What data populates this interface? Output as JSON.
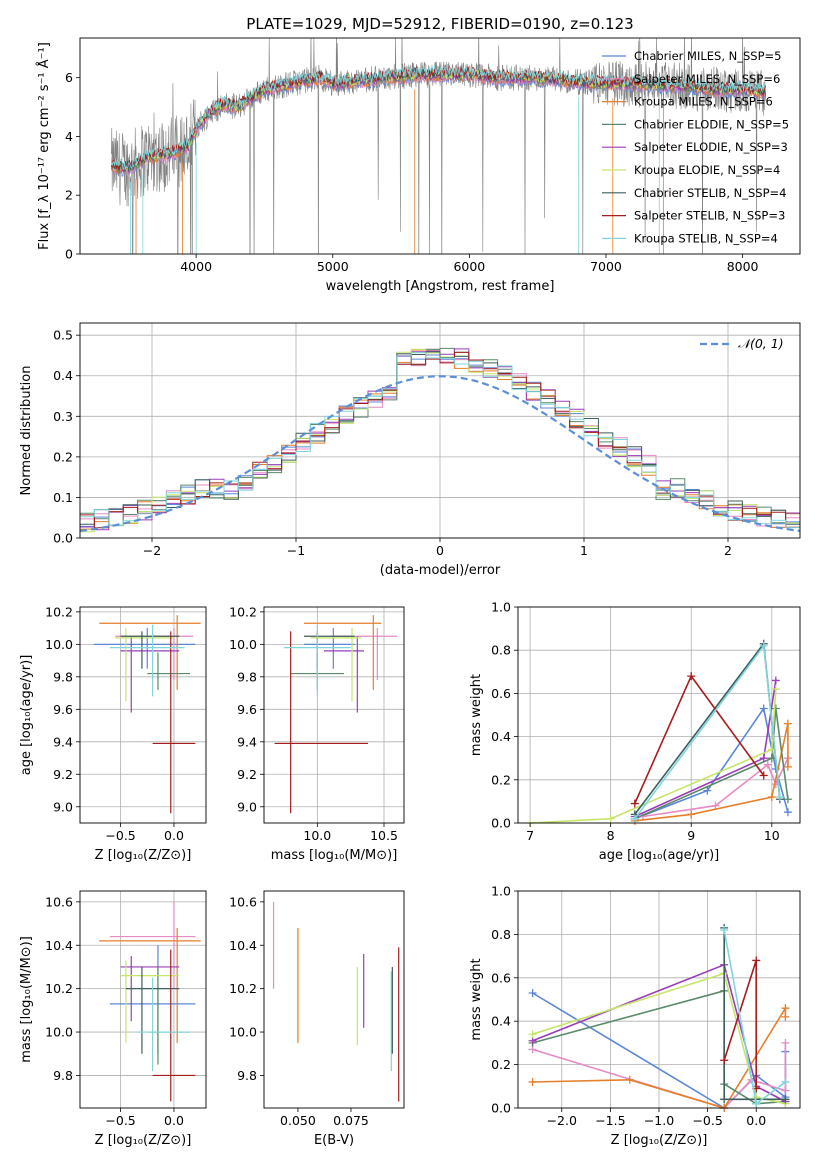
{
  "title": "PLATE=1029, MJD=52912, FIBERID=0190, z=0.123",
  "colors": {
    "chabrier_miles": "#5b86d8",
    "salpeter_miles": "#e78ac3",
    "kroupa_miles": "#e57f2a",
    "chabrier_elodie": "#5a8a6a",
    "salpeter_elodie": "#9b3db8",
    "kroupa_elodie": "#c6e66a",
    "chabrier_stelib": "#3d5f5e",
    "salpeter_stelib": "#a61c1c",
    "kroupa_stelib": "#7fd6dc",
    "data_gray": "#808080",
    "normal_curve": "#5b8fd8"
  },
  "chart_data": [
    {
      "id": "spectrum",
      "type": "line",
      "xlabel": "wavelength [Angstrom, rest frame]",
      "ylabel": "Flux [f_λ 10⁻¹⁷ erg cm⁻² s⁻¹ Å⁻¹]",
      "xlim": [
        3150,
        8420
      ],
      "ylim": [
        0,
        7.35
      ],
      "xticks": [
        4000,
        5000,
        6000,
        7000,
        8000
      ],
      "yticks": [
        0,
        2,
        4,
        6
      ],
      "grid": false,
      "legend": "top-right",
      "continuum": {
        "x": [
          3380,
          3500,
          3650,
          3800,
          3950,
          4000,
          4100,
          4200,
          4300,
          4400,
          4500,
          4700,
          4900,
          5000,
          5200,
          5400,
          5600,
          5800,
          6000,
          6200,
          6400,
          6600,
          6800,
          7000,
          7200,
          7400,
          7600,
          7800,
          8000,
          8170
        ],
        "y": [
          3.0,
          2.9,
          3.3,
          3.4,
          3.7,
          4.3,
          4.8,
          5.1,
          5.0,
          5.3,
          5.6,
          5.8,
          6.0,
          5.8,
          5.9,
          6.0,
          6.1,
          6.1,
          6.1,
          6.0,
          6.0,
          5.95,
          5.85,
          5.8,
          5.8,
          5.75,
          5.7,
          5.6,
          5.6,
          5.5
        ]
      },
      "series": [
        {
          "name": "Chabrier MILES, N_SSP=5",
          "color_key": "chabrier_miles"
        },
        {
          "name": "Salpeter MILES, N_SSP=6",
          "color_key": "salpeter_miles"
        },
        {
          "name": "Kroupa MILES, N_SSP=6",
          "color_key": "kroupa_miles"
        },
        {
          "name": "Chabrier ELODIE, N_SSP=5",
          "color_key": "chabrier_elodie"
        },
        {
          "name": "Salpeter ELODIE, N_SSP=3",
          "color_key": "salpeter_elodie"
        },
        {
          "name": "Kroupa ELODIE, N_SSP=4",
          "color_key": "kroupa_elodie"
        },
        {
          "name": "Chabrier STELIB, N_SSP=4",
          "color_key": "chabrier_stelib"
        },
        {
          "name": "Salpeter STELIB, N_SSP=3",
          "color_key": "salpeter_stelib"
        },
        {
          "name": "Kroupa STELIB, N_SSP=4",
          "color_key": "kroupa_stelib"
        }
      ]
    },
    {
      "id": "residuals",
      "type": "line",
      "xlabel": "(data-model)/error",
      "ylabel": "Normed distribution",
      "xlim": [
        -2.5,
        2.5
      ],
      "ylim": [
        0,
        0.53
      ],
      "xticks": [
        -2,
        -1,
        0,
        1,
        2
      ],
      "yticks": [
        0.0,
        0.1,
        0.2,
        0.3,
        0.4,
        0.5
      ],
      "grid": true,
      "legend": "top-right",
      "legend_label": "𝒩(0, 1)",
      "bin_width": 0.1,
      "bin_start": -2.5,
      "bin_count": 50
    },
    {
      "id": "age_vs_Z",
      "type": "scatter",
      "xlabel": "Z [log₁₀(Z/Z⊙)]",
      "ylabel": "age  [log₁₀(age/yr)]",
      "xlim": [
        -0.88,
        0.3
      ],
      "ylim": [
        8.9,
        10.23
      ],
      "xticks": [
        -0.5,
        0.0
      ],
      "yticks": [
        9.0,
        9.2,
        9.4,
        9.6,
        9.8,
        10.0,
        10.2
      ],
      "grid": true,
      "points": [
        {
          "x": -0.25,
          "y": 10.0,
          "xlo": -0.75,
          "xhi": 0.2,
          "ylo": 9.85,
          "yhi": 10.1,
          "color_key": "chabrier_miles"
        },
        {
          "x": 0.0,
          "y": 10.05,
          "xlo": -0.55,
          "xhi": 0.18,
          "ylo": 9.78,
          "yhi": 10.1,
          "color_key": "salpeter_miles"
        },
        {
          "x": 0.03,
          "y": 10.13,
          "xlo": -0.7,
          "xhi": 0.25,
          "ylo": 9.72,
          "yhi": 10.18,
          "color_key": "kroupa_miles"
        },
        {
          "x": -0.15,
          "y": 9.82,
          "xlo": -0.25,
          "xhi": 0.15,
          "ylo": 9.72,
          "yhi": 9.95,
          "color_key": "chabrier_elodie"
        },
        {
          "x": -0.4,
          "y": 9.96,
          "xlo": -0.5,
          "xhi": 0.05,
          "ylo": 9.58,
          "yhi": 10.05,
          "color_key": "salpeter_elodie"
        },
        {
          "x": -0.45,
          "y": 10.04,
          "xlo": -0.55,
          "xhi": 0.0,
          "ylo": 9.65,
          "yhi": 10.1,
          "color_key": "kroupa_elodie"
        },
        {
          "x": -0.3,
          "y": 10.05,
          "xlo": -0.5,
          "xhi": 0.05,
          "ylo": 9.85,
          "yhi": 10.08,
          "color_key": "chabrier_stelib"
        },
        {
          "x": -0.03,
          "y": 9.39,
          "xlo": -0.2,
          "xhi": 0.2,
          "ylo": 8.96,
          "yhi": 10.08,
          "color_key": "salpeter_stelib"
        },
        {
          "x": -0.2,
          "y": 9.98,
          "xlo": -0.6,
          "xhi": 0.1,
          "ylo": 9.68,
          "yhi": 10.12,
          "color_key": "kroupa_stelib"
        }
      ]
    },
    {
      "id": "age_vs_mass",
      "type": "scatter",
      "xlabel": "mass [log₁₀(M/M⊙)]",
      "ylabel": "",
      "xlim": [
        9.6,
        10.65
      ],
      "ylim": [
        8.9,
        10.23
      ],
      "xticks": [
        10.0,
        10.5
      ],
      "yticks": [
        9.0,
        9.2,
        9.4,
        9.6,
        9.8,
        10.0,
        10.2
      ],
      "grid": true,
      "points": [
        {
          "x": 10.12,
          "y": 10.0,
          "xlo": 9.9,
          "xhi": 10.28,
          "ylo": 9.85,
          "yhi": 10.1,
          "color_key": "chabrier_miles"
        },
        {
          "x": 10.45,
          "y": 10.05,
          "xlo": 10.1,
          "xhi": 10.6,
          "ylo": 9.78,
          "yhi": 10.1,
          "color_key": "salpeter_miles"
        },
        {
          "x": 10.42,
          "y": 10.13,
          "xlo": 9.9,
          "xhi": 10.48,
          "ylo": 9.72,
          "yhi": 10.18,
          "color_key": "kroupa_miles"
        },
        {
          "x": 10.0,
          "y": 9.82,
          "xlo": 9.8,
          "xhi": 10.2,
          "ylo": 9.72,
          "yhi": 9.95,
          "color_key": "chabrier_elodie"
        },
        {
          "x": 10.3,
          "y": 9.96,
          "xlo": 10.05,
          "xhi": 10.35,
          "ylo": 9.58,
          "yhi": 10.05,
          "color_key": "salpeter_elodie"
        },
        {
          "x": 10.26,
          "y": 10.04,
          "xlo": 9.95,
          "xhi": 10.33,
          "ylo": 9.65,
          "yhi": 10.1,
          "color_key": "kroupa_elodie"
        },
        {
          "x": 10.0,
          "y": 10.05,
          "xlo": 9.9,
          "xhi": 10.28,
          "ylo": 9.85,
          "yhi": 10.08,
          "color_key": "chabrier_stelib"
        },
        {
          "x": 9.8,
          "y": 9.39,
          "xlo": 9.68,
          "xhi": 10.38,
          "ylo": 8.96,
          "yhi": 10.08,
          "color_key": "salpeter_stelib"
        },
        {
          "x": 10.0,
          "y": 9.98,
          "xlo": 9.75,
          "xhi": 10.25,
          "ylo": 9.68,
          "yhi": 10.12,
          "color_key": "kroupa_stelib"
        }
      ]
    },
    {
      "id": "weight_vs_age",
      "type": "line",
      "xlabel": "age  [log₁₀(age/yr)]",
      "ylabel": "mass weight",
      "xlim": [
        6.85,
        10.35
      ],
      "ylim": [
        0,
        1.0
      ],
      "xticks": [
        7,
        8,
        9,
        10
      ],
      "yticks": [
        0.0,
        0.2,
        0.4,
        0.6,
        0.8,
        1.0
      ],
      "grid": true,
      "series": [
        {
          "color_key": "chabrier_miles",
          "x": [
            8.3,
            9.2,
            9.9,
            10.05,
            10.2
          ],
          "y": [
            0.02,
            0.15,
            0.53,
            0.25,
            0.05
          ]
        },
        {
          "color_key": "salpeter_miles",
          "x": [
            8.4,
            9.3,
            9.95,
            10.05,
            10.2
          ],
          "y": [
            0.03,
            0.08,
            0.27,
            0.18,
            0.3
          ]
        },
        {
          "color_key": "kroupa_miles",
          "x": [
            8.3,
            9.0,
            10.0,
            10.2,
            10.2
          ],
          "y": [
            0.01,
            0.04,
            0.12,
            0.46,
            0.26
          ]
        },
        {
          "color_key": "chabrier_elodie",
          "x": [
            8.3,
            10.0,
            10.05,
            10.2
          ],
          "y": [
            0.02,
            0.3,
            0.53,
            0.11
          ]
        },
        {
          "color_key": "salpeter_elodie",
          "x": [
            8.3,
            9.9,
            10.05
          ],
          "y": [
            0.03,
            0.3,
            0.66
          ]
        },
        {
          "color_key": "kroupa_elodie",
          "x": [
            7.0,
            8.0,
            10.0,
            10.05
          ],
          "y": [
            0.0,
            0.02,
            0.34,
            0.62
          ]
        },
        {
          "color_key": "chabrier_stelib",
          "x": [
            8.3,
            9.9,
            10.1
          ],
          "y": [
            0.04,
            0.83,
            0.11
          ]
        },
        {
          "color_key": "salpeter_stelib",
          "x": [
            8.3,
            9.0,
            9.9
          ],
          "y": [
            0.09,
            0.68,
            0.22
          ]
        },
        {
          "color_key": "kroupa_stelib",
          "x": [
            8.3,
            9.9,
            10.1
          ],
          "y": [
            0.02,
            0.82,
            0.12
          ]
        }
      ]
    },
    {
      "id": "mass_vs_Z",
      "type": "scatter",
      "xlabel": "Z [log₁₀(Z/Z⊙)]",
      "ylabel": "mass [log₁₀(M/M⊙)]",
      "xlim": [
        -0.88,
        0.3
      ],
      "ylim": [
        9.65,
        10.65
      ],
      "xticks": [
        -0.5,
        0.0
      ],
      "yticks": [
        9.8,
        10.0,
        10.2,
        10.4,
        10.6
      ],
      "grid": true,
      "points": [
        {
          "x": -0.15,
          "y": 10.13,
          "xlo": -0.6,
          "xhi": 0.2,
          "ylo": 9.9,
          "yhi": 10.4,
          "color_key": "chabrier_miles"
        },
        {
          "x": 0.0,
          "y": 10.44,
          "xlo": -0.6,
          "xhi": 0.2,
          "ylo": 10.2,
          "yhi": 10.6,
          "color_key": "salpeter_miles"
        },
        {
          "x": 0.03,
          "y": 10.42,
          "xlo": -0.7,
          "xhi": 0.25,
          "ylo": 9.95,
          "yhi": 10.48,
          "color_key": "kroupa_miles"
        },
        {
          "x": -0.15,
          "y": 10.0,
          "xlo": -0.25,
          "xhi": 0.15,
          "ylo": 9.85,
          "yhi": 10.3,
          "color_key": "chabrier_elodie"
        },
        {
          "x": -0.4,
          "y": 10.3,
          "xlo": -0.5,
          "xhi": 0.05,
          "ylo": 10.05,
          "yhi": 10.35,
          "color_key": "salpeter_elodie"
        },
        {
          "x": -0.45,
          "y": 10.26,
          "xlo": -0.5,
          "xhi": 0.05,
          "ylo": 9.95,
          "yhi": 10.33,
          "color_key": "kroupa_elodie"
        },
        {
          "x": -0.3,
          "y": 10.2,
          "xlo": -0.45,
          "xhi": 0.05,
          "ylo": 9.9,
          "yhi": 10.3,
          "color_key": "chabrier_stelib"
        },
        {
          "x": -0.03,
          "y": 9.8,
          "xlo": -0.2,
          "xhi": 0.2,
          "ylo": 9.68,
          "yhi": 10.38,
          "color_key": "salpeter_stelib"
        },
        {
          "x": -0.2,
          "y": 10.0,
          "xlo": -0.35,
          "xhi": 0.15,
          "ylo": 9.82,
          "yhi": 10.25,
          "color_key": "kroupa_stelib"
        }
      ]
    },
    {
      "id": "mass_vs_ebv",
      "type": "scatter",
      "xlabel": "E(B-V)",
      "ylabel": "",
      "xlim": [
        0.034,
        0.1
      ],
      "ylim": [
        9.65,
        10.65
      ],
      "xticks": [
        0.05,
        0.075
      ],
      "xticklabels": [
        "0.050",
        "0.075"
      ],
      "yticks": [
        9.8,
        10.0,
        10.2,
        10.4,
        10.6
      ],
      "grid": false,
      "points": [
        {
          "x": 0.0385,
          "ylo": 10.2,
          "yhi": 10.6,
          "color_key": "salpeter_miles"
        },
        {
          "x": 0.05,
          "ylo": 9.95,
          "yhi": 10.48,
          "color_key": "kroupa_miles"
        },
        {
          "x": 0.078,
          "ylo": 9.94,
          "yhi": 10.3,
          "color_key": "kroupa_elodie"
        },
        {
          "x": 0.081,
          "ylo": 10.02,
          "yhi": 10.36,
          "color_key": "salpeter_elodie"
        },
        {
          "x": 0.094,
          "ylo": 9.82,
          "yhi": 10.28,
          "color_key": "kroupa_stelib"
        },
        {
          "x": 0.0945,
          "ylo": 9.9,
          "yhi": 10.3,
          "color_key": "chabrier_stelib"
        },
        {
          "x": 0.0975,
          "ylo": 9.68,
          "yhi": 10.39,
          "color_key": "salpeter_stelib"
        }
      ]
    },
    {
      "id": "weight_vs_Z",
      "type": "line",
      "xlabel": "Z [log₁₀(Z/Z⊙)]",
      "ylabel": "mass weight",
      "xlim": [
        -2.45,
        0.45
      ],
      "ylim": [
        0,
        1.0
      ],
      "xticks": [
        -2.0,
        -1.5,
        -1.0,
        -0.5,
        0.0
      ],
      "yticks": [
        0.0,
        0.2,
        0.4,
        0.6,
        0.8,
        1.0
      ],
      "grid": true,
      "series": [
        {
          "color_key": "chabrier_miles",
          "x": [
            -2.3,
            -0.33,
            0.0,
            0.3,
            0.3
          ],
          "y": [
            0.53,
            0.0,
            0.15,
            0.05,
            0.26
          ]
        },
        {
          "color_key": "salpeter_miles",
          "x": [
            -2.3,
            -0.33,
            -0.05,
            0.3,
            0.3
          ],
          "y": [
            0.27,
            0.0,
            0.13,
            0.08,
            0.3
          ]
        },
        {
          "color_key": "kroupa_miles",
          "x": [
            -2.3,
            -1.3,
            -0.33,
            0.3,
            0.3
          ],
          "y": [
            0.12,
            0.13,
            0.0,
            0.46,
            0.42
          ]
        },
        {
          "color_key": "chabrier_elodie",
          "x": [
            -2.3,
            -0.33,
            -0.33,
            0.0,
            0.3
          ],
          "y": [
            0.3,
            0.54,
            0.11,
            0.02,
            0.03
          ]
        },
        {
          "color_key": "salpeter_elodie",
          "x": [
            -2.3,
            -0.33,
            0.0,
            0.3
          ],
          "y": [
            0.31,
            0.66,
            0.1,
            0.03
          ]
        },
        {
          "color_key": "kroupa_elodie",
          "x": [
            -2.3,
            -0.33,
            0.0,
            0.3
          ],
          "y": [
            0.34,
            0.62,
            0.05,
            0.02
          ]
        },
        {
          "color_key": "chabrier_stelib",
          "x": [
            -0.33,
            -0.33,
            0.3
          ],
          "y": [
            0.83,
            0.04,
            0.04
          ]
        },
        {
          "color_key": "salpeter_stelib",
          "x": [
            -0.33,
            0.0,
            0.0
          ],
          "y": [
            0.22,
            0.68,
            0.09
          ]
        },
        {
          "color_key": "kroupa_stelib",
          "x": [
            -0.33,
            0.0,
            0.3
          ],
          "y": [
            0.82,
            0.02,
            0.12
          ]
        }
      ]
    }
  ]
}
